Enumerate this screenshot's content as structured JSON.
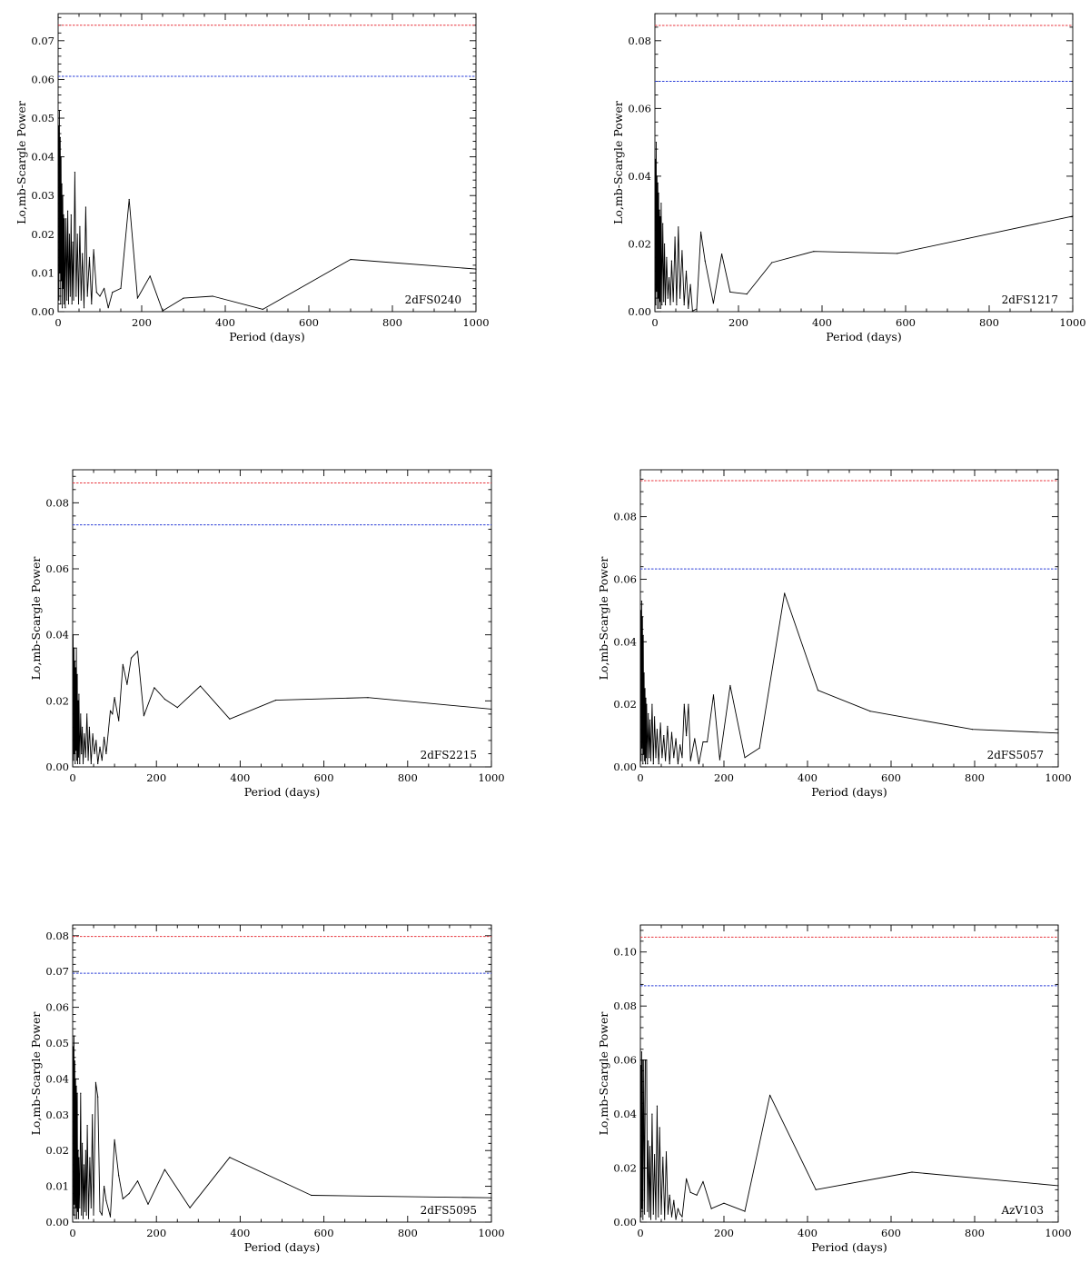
{
  "figure": {
    "ylabel": "Lo,mb-Scargle Power",
    "xlabel": "Period (days)"
  },
  "chart_data": [
    {
      "type": "line",
      "label": "2dFS0240",
      "xlabel": "Period (days)",
      "ylabel": "Lo,mb-Scargle Power",
      "xlim": [
        0,
        1000
      ],
      "ylim": [
        0,
        0.077
      ],
      "x_ticks": [
        0,
        200,
        400,
        600,
        800,
        1000
      ],
      "y_ticks": [
        0,
        0.01,
        0.02,
        0.03,
        0.04,
        0.05,
        0.06,
        0.07
      ],
      "y_tick_labels": [
        "0.00",
        "0.01",
        "0.02",
        "0.03",
        "0.04",
        "0.05",
        "0.06",
        "0.07"
      ],
      "thresholds": [
        {
          "value": 0.074,
          "color": "#e8373f"
        },
        {
          "value": 0.0608,
          "color": "#2b3fd8"
        }
      ],
      "series": [
        {
          "x": [
            1,
            2,
            3,
            4,
            5,
            6,
            7,
            8,
            9,
            10,
            11,
            12,
            13,
            14,
            15,
            17,
            19,
            21,
            23,
            25,
            27,
            29,
            31,
            33,
            35,
            37,
            40,
            43,
            46,
            49,
            52,
            55,
            58,
            62,
            66,
            70,
            75,
            80,
            85,
            92,
            100,
            110,
            120,
            130,
            150,
            170,
            190,
            220,
            250,
            300,
            370,
            490,
            700,
            1000
          ],
          "y": [
            0.048,
            0.003,
            0.052,
            0.01,
            0.045,
            0.002,
            0.04,
            0.008,
            0.033,
            0.001,
            0.03,
            0.006,
            0.025,
            0.002,
            0.024,
            0.001,
            0.024,
            0.003,
            0.026,
            0.002,
            0.02,
            0.004,
            0.025,
            0.002,
            0.018,
            0.003,
            0.036,
            0.004,
            0.02,
            0.002,
            0.022,
            0.003,
            0.015,
            0.001,
            0.027,
            0.004,
            0.014,
            0.002,
            0.016,
            0.005,
            0.004,
            0.006,
            0.001,
            0.005,
            0.006,
            0.029,
            0.0035,
            0.0092,
            0.0002,
            0.0035,
            0.004,
            0.0006,
            0.0135,
            0.011
          ]
        }
      ]
    },
    {
      "type": "line",
      "label": "2dFS1217",
      "xlabel": "Period (days)",
      "ylabel": "Lo,mb-Scargle Power",
      "xlim": [
        0,
        1000
      ],
      "ylim": [
        0,
        0.088
      ],
      "x_ticks": [
        0,
        200,
        400,
        600,
        800,
        1000
      ],
      "y_ticks": [
        0,
        0.02,
        0.04,
        0.06,
        0.08
      ],
      "y_tick_labels": [
        "0.00",
        "0.02",
        "0.04",
        "0.06",
        "0.08"
      ],
      "thresholds": [
        {
          "value": 0.0845,
          "color": "#e8373f"
        },
        {
          "value": 0.068,
          "color": "#2b3fd8"
        }
      ],
      "series": [
        {
          "x": [
            1,
            2,
            3,
            4,
            5,
            6,
            7,
            8,
            9,
            10,
            11,
            12,
            13,
            14,
            15,
            17,
            19,
            21,
            23,
            25,
            28,
            31,
            34,
            37,
            40,
            44,
            48,
            52,
            56,
            60,
            65,
            70,
            75,
            80,
            85,
            90,
            100,
            110,
            120,
            140,
            160,
            180,
            220,
            280,
            380,
            580,
            1000
          ],
          "y": [
            0.045,
            0.002,
            0.05,
            0.006,
            0.04,
            0.001,
            0.038,
            0.004,
            0.035,
            0.001,
            0.03,
            0.003,
            0.028,
            0.001,
            0.032,
            0.002,
            0.026,
            0.003,
            0.02,
            0.002,
            0.016,
            0.004,
            0.01,
            0.002,
            0.015,
            0.003,
            0.022,
            0.002,
            0.025,
            0.004,
            0.018,
            0.002,
            0.012,
            0.001,
            0.008,
            0.0002,
            0.0008,
            0.0235,
            0.015,
            0.0025,
            0.017,
            0.0058,
            0.0052,
            0.0145,
            0.0178,
            0.0172,
            0.0282
          ]
        }
      ]
    },
    {
      "type": "line",
      "label": "2dFS2215",
      "xlabel": "Period (days)",
      "ylabel": "Lo,mb-Scargle Power",
      "xlim": [
        0,
        1000
      ],
      "ylim": [
        0,
        0.09
      ],
      "x_ticks": [
        0,
        200,
        400,
        600,
        800,
        1000
      ],
      "y_ticks": [
        0,
        0.02,
        0.04,
        0.06,
        0.08
      ],
      "y_tick_labels": [
        "0.00",
        "0.02",
        "0.04",
        "0.06",
        "0.08"
      ],
      "thresholds": [
        {
          "value": 0.086,
          "color": "#e8373f"
        },
        {
          "value": 0.0733,
          "color": "#2b3fd8"
        }
      ],
      "series": [
        {
          "x": [
            1,
            2,
            3,
            4,
            5,
            6,
            7,
            8,
            9,
            10,
            11,
            12,
            13,
            14,
            15,
            17,
            19,
            21,
            23,
            25,
            28,
            31,
            34,
            37,
            40,
            44,
            48,
            52,
            56,
            60,
            65,
            70,
            75,
            80,
            90,
            95,
            100,
            110,
            120,
            130,
            140,
            155,
            170,
            195,
            220,
            250,
            305,
            375,
            485,
            705,
            1000
          ],
          "y": [
            0.04,
            0.002,
            0.036,
            0.004,
            0.032,
            0.001,
            0.03,
            0.005,
            0.036,
            0.002,
            0.028,
            0.001,
            0.02,
            0.003,
            0.022,
            0.001,
            0.016,
            0.004,
            0.012,
            0.001,
            0.01,
            0.003,
            0.016,
            0.002,
            0.012,
            0.001,
            0.01,
            0.004,
            0.008,
            0.001,
            0.006,
            0.002,
            0.009,
            0.004,
            0.017,
            0.016,
            0.021,
            0.014,
            0.031,
            0.025,
            0.033,
            0.035,
            0.0155,
            0.024,
            0.0205,
            0.018,
            0.0245,
            0.0145,
            0.0202,
            0.021,
            0.0175
          ]
        }
      ]
    },
    {
      "type": "line",
      "label": "2dFS5057",
      "xlabel": "Period (days)",
      "ylabel": "Lo,mb-Scargle Power",
      "xlim": [
        0,
        1000
      ],
      "ylim": [
        0,
        0.095
      ],
      "x_ticks": [
        0,
        200,
        400,
        600,
        800,
        1000
      ],
      "y_ticks": [
        0,
        0.02,
        0.04,
        0.06,
        0.08
      ],
      "y_tick_labels": [
        "0.00",
        "0.02",
        "0.04",
        "0.06",
        "0.08"
      ],
      "thresholds": [
        {
          "value": 0.0915,
          "color": "#e8373f"
        },
        {
          "value": 0.0633,
          "color": "#2b3fd8"
        }
      ],
      "series": [
        {
          "x": [
            1,
            2,
            3,
            4,
            5,
            6,
            7,
            8,
            9,
            10,
            11,
            12,
            13,
            14,
            15,
            17,
            19,
            21,
            23,
            25,
            28,
            31,
            34,
            37,
            40,
            44,
            48,
            52,
            56,
            60,
            65,
            70,
            75,
            80,
            85,
            90,
            95,
            100,
            105,
            110,
            115,
            120,
            130,
            140,
            150,
            160,
            175,
            190,
            215,
            250,
            285,
            345,
            425,
            550,
            795,
            1000
          ],
          "y": [
            0.05,
            0.002,
            0.053,
            0.006,
            0.048,
            0.001,
            0.042,
            0.004,
            0.03,
            0.002,
            0.025,
            0.001,
            0.022,
            0.003,
            0.02,
            0.001,
            0.017,
            0.003,
            0.015,
            0.002,
            0.02,
            0.001,
            0.016,
            0.003,
            0.012,
            0.001,
            0.014,
            0.003,
            0.01,
            0.002,
            0.013,
            0.001,
            0.011,
            0.003,
            0.009,
            0.001,
            0.007,
            0.003,
            0.02,
            0.01,
            0.02,
            0.002,
            0.009,
            0.001,
            0.008,
            0.008,
            0.023,
            0.0023,
            0.026,
            0.003,
            0.006,
            0.0555,
            0.0245,
            0.0178,
            0.012,
            0.0108
          ]
        }
      ]
    },
    {
      "type": "line",
      "label": "2dFS5095",
      "xlabel": "Period (days)",
      "ylabel": "Lo,mb-Scargle Power",
      "xlim": [
        0,
        1000
      ],
      "ylim": [
        0,
        0.083
      ],
      "x_ticks": [
        0,
        200,
        400,
        600,
        800,
        1000
      ],
      "y_ticks": [
        0,
        0.01,
        0.02,
        0.03,
        0.04,
        0.05,
        0.06,
        0.07,
        0.08
      ],
      "y_tick_labels": [
        "0.00",
        "0.01",
        "0.02",
        "0.03",
        "0.04",
        "0.05",
        "0.06",
        "0.07",
        "0.08"
      ],
      "thresholds": [
        {
          "value": 0.0798,
          "color": "#e8373f"
        },
        {
          "value": 0.0695,
          "color": "#2b3fd8"
        }
      ],
      "series": [
        {
          "x": [
            1,
            2,
            3,
            4,
            5,
            6,
            7,
            8,
            9,
            10,
            11,
            12,
            13,
            14,
            15,
            17,
            19,
            21,
            23,
            25,
            27,
            29,
            31,
            33,
            35,
            38,
            41,
            44,
            47,
            50,
            55,
            60,
            65,
            70,
            75,
            80,
            90,
            100,
            110,
            120,
            135,
            155,
            180,
            220,
            280,
            375,
            570,
            1000
          ],
          "y": [
            0.049,
            0.002,
            0.052,
            0.005,
            0.045,
            0.001,
            0.04,
            0.004,
            0.038,
            0.001,
            0.036,
            0.003,
            0.02,
            0.001,
            0.018,
            0.004,
            0.036,
            0.002,
            0.022,
            0.001,
            0.016,
            0.003,
            0.02,
            0.002,
            0.027,
            0.001,
            0.018,
            0.004,
            0.03,
            0.002,
            0.039,
            0.035,
            0.003,
            0.002,
            0.01,
            0.006,
            0.0015,
            0.023,
            0.013,
            0.0065,
            0.008,
            0.0115,
            0.005,
            0.0147,
            0.004,
            0.0181,
            0.0075,
            0.0068
          ]
        }
      ]
    },
    {
      "type": "line",
      "label": "AzV103",
      "xlabel": "Period (days)",
      "ylabel": "Lo,mb-Scargle Power",
      "xlim": [
        0,
        1000
      ],
      "ylim": [
        0,
        0.11
      ],
      "x_ticks": [
        0,
        200,
        400,
        600,
        800,
        1000
      ],
      "y_ticks": [
        0,
        0.02,
        0.04,
        0.06,
        0.08,
        0.1
      ],
      "y_tick_labels": [
        "0.00",
        "0.02",
        "0.04",
        "0.06",
        "0.08",
        "0.10"
      ],
      "thresholds": [
        {
          "value": 0.1055,
          "color": "#e8373f"
        },
        {
          "value": 0.0875,
          "color": "#2b3fd8"
        }
      ],
      "series": [
        {
          "x": [
            1,
            2,
            3,
            4,
            5,
            6,
            8,
            10,
            12,
            15,
            17,
            19,
            21,
            23,
            25,
            28,
            31,
            34,
            37,
            40,
            43,
            46,
            50,
            54,
            58,
            62,
            66,
            70,
            75,
            80,
            85,
            90,
            95,
            100,
            110,
            120,
            135,
            150,
            170,
            200,
            250,
            310,
            420,
            650,
            1000
          ],
          "y": [
            0.058,
            0.002,
            0.063,
            0.005,
            0.06,
            0.001,
            0.06,
            0.003,
            0.06,
            0.06,
            0.004,
            0.03,
            0.002,
            0.028,
            0.001,
            0.04,
            0.003,
            0.025,
            0.001,
            0.043,
            0.002,
            0.035,
            0.003,
            0.024,
            0.001,
            0.026,
            0.003,
            0.01,
            0.002,
            0.008,
            0.001,
            0.005,
            0.003,
            0.002,
            0.016,
            0.011,
            0.01,
            0.015,
            0.005,
            0.007,
            0.004,
            0.047,
            0.012,
            0.0185,
            0.0135
          ]
        }
      ]
    }
  ]
}
